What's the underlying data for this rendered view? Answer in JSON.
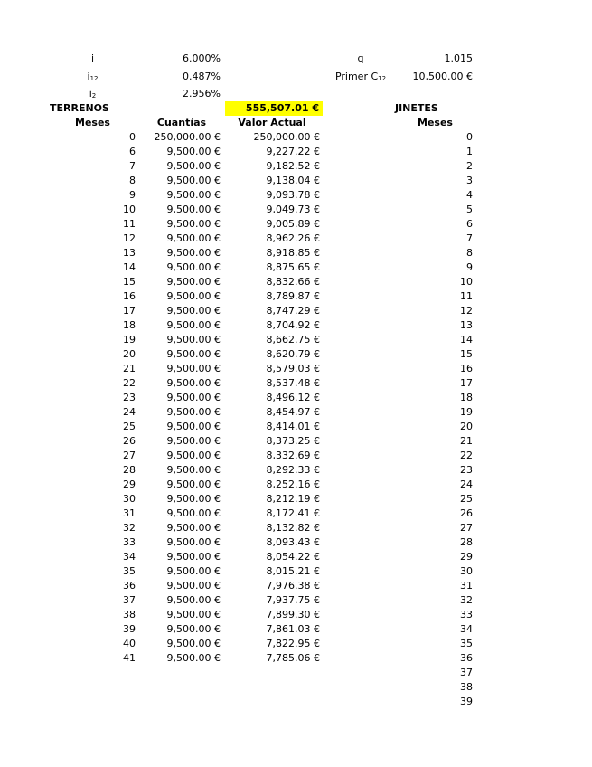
{
  "params": {
    "i_label": "i",
    "i_value": "6.000%",
    "i12_label": "i",
    "i12_sub": "12",
    "i12_value": "0.487%",
    "i2_label": "i",
    "i2_sub": "2",
    "i2_value": "2.956%",
    "q_label": "q",
    "q_value": "1.015",
    "primer_label": "Primer C",
    "primer_sub": "12",
    "primer_value": "10,500.00 €"
  },
  "terrenos": {
    "title": "TERRENOS",
    "total": "555,507.01 €",
    "highlight_color": "#ffff00",
    "headers": [
      "Meses",
      "Cuantías",
      "Valor Actual"
    ],
    "rows": [
      [
        "0",
        "250,000.00 €",
        "250,000.00 €"
      ],
      [
        "6",
        "9,500.00 €",
        "9,227.22 €"
      ],
      [
        "7",
        "9,500.00 €",
        "9,182.52 €"
      ],
      [
        "8",
        "9,500.00 €",
        "9,138.04 €"
      ],
      [
        "9",
        "9,500.00 €",
        "9,093.78 €"
      ],
      [
        "10",
        "9,500.00 €",
        "9,049.73 €"
      ],
      [
        "11",
        "9,500.00 €",
        "9,005.89 €"
      ],
      [
        "12",
        "9,500.00 €",
        "8,962.26 €"
      ],
      [
        "13",
        "9,500.00 €",
        "8,918.85 €"
      ],
      [
        "14",
        "9,500.00 €",
        "8,875.65 €"
      ],
      [
        "15",
        "9,500.00 €",
        "8,832.66 €"
      ],
      [
        "16",
        "9,500.00 €",
        "8,789.87 €"
      ],
      [
        "17",
        "9,500.00 €",
        "8,747.29 €"
      ],
      [
        "18",
        "9,500.00 €",
        "8,704.92 €"
      ],
      [
        "19",
        "9,500.00 €",
        "8,662.75 €"
      ],
      [
        "20",
        "9,500.00 €",
        "8,620.79 €"
      ],
      [
        "21",
        "9,500.00 €",
        "8,579.03 €"
      ],
      [
        "22",
        "9,500.00 €",
        "8,537.48 €"
      ],
      [
        "23",
        "9,500.00 €",
        "8,496.12 €"
      ],
      [
        "24",
        "9,500.00 €",
        "8,454.97 €"
      ],
      [
        "25",
        "9,500.00 €",
        "8,414.01 €"
      ],
      [
        "26",
        "9,500.00 €",
        "8,373.25 €"
      ],
      [
        "27",
        "9,500.00 €",
        "8,332.69 €"
      ],
      [
        "28",
        "9,500.00 €",
        "8,292.33 €"
      ],
      [
        "29",
        "9,500.00 €",
        "8,252.16 €"
      ],
      [
        "30",
        "9,500.00 €",
        "8,212.19 €"
      ],
      [
        "31",
        "9,500.00 €",
        "8,172.41 €"
      ],
      [
        "32",
        "9,500.00 €",
        "8,132.82 €"
      ],
      [
        "33",
        "9,500.00 €",
        "8,093.43 €"
      ],
      [
        "34",
        "9,500.00 €",
        "8,054.22 €"
      ],
      [
        "35",
        "9,500.00 €",
        "8,015.21 €"
      ],
      [
        "36",
        "9,500.00 €",
        "7,976.38 €"
      ],
      [
        "37",
        "9,500.00 €",
        "7,937.75 €"
      ],
      [
        "38",
        "9,500.00 €",
        "7,899.30 €"
      ],
      [
        "39",
        "9,500.00 €",
        "7,861.03 €"
      ],
      [
        "40",
        "9,500.00 €",
        "7,822.95 €"
      ],
      [
        "41",
        "9,500.00 €",
        "7,785.06 €"
      ]
    ]
  },
  "jinetes": {
    "title": "JINETES",
    "header": "Meses",
    "months": [
      "0",
      "1",
      "2",
      "3",
      "4",
      "5",
      "6",
      "7",
      "8",
      "9",
      "10",
      "11",
      "12",
      "13",
      "14",
      "15",
      "16",
      "17",
      "18",
      "19",
      "20",
      "21",
      "22",
      "23",
      "24",
      "25",
      "26",
      "27",
      "28",
      "29",
      "30",
      "31",
      "32",
      "33",
      "34",
      "35",
      "36",
      "37",
      "38",
      "39"
    ]
  }
}
